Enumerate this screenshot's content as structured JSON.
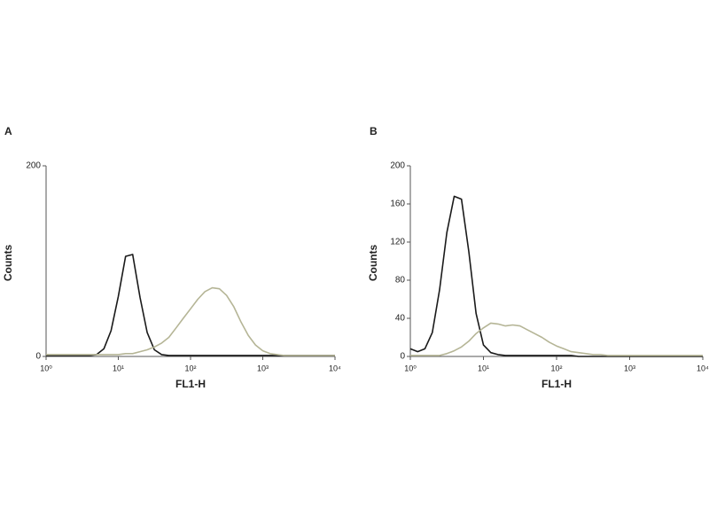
{
  "chart_data": [
    {
      "type": "line",
      "title": "A",
      "xlabel": "FL1-H",
      "ylabel": "Counts",
      "xscale": "log",
      "x": [
        1,
        1.26,
        1.58,
        2,
        2.51,
        3.16,
        3.98,
        5.01,
        6.31,
        7.94,
        10,
        12.6,
        15.8,
        20,
        25.1,
        31.6,
        39.8,
        50.1,
        63.1,
        79.4,
        100,
        126,
        158,
        200,
        251,
        316,
        398,
        501,
        631,
        794,
        1000,
        1259,
        1585,
        1995,
        2512,
        3162,
        3981,
        5012,
        6310,
        7943,
        10000
      ],
      "series": [
        {
          "color": "#1a1a1a",
          "values": [
            1,
            1,
            1,
            1,
            1,
            1,
            1,
            2,
            8,
            27,
            63,
            105,
            107,
            62,
            25,
            7,
            2,
            1,
            1,
            1,
            1,
            1,
            1,
            1,
            1,
            1,
            1,
            1,
            1,
            1,
            1,
            1,
            1,
            1,
            1,
            1,
            1,
            1,
            1,
            1,
            1
          ]
        },
        {
          "color": "#b5b596",
          "values": [
            2,
            2,
            2,
            2,
            2,
            2,
            2,
            2,
            2,
            2,
            2,
            3,
            3,
            5,
            7,
            10,
            14,
            20,
            30,
            40,
            50,
            60,
            68,
            72,
            71,
            64,
            52,
            36,
            22,
            12,
            6,
            3,
            2,
            1,
            1,
            1,
            1,
            1,
            1,
            1,
            1
          ]
        }
      ],
      "xlim": [
        1,
        10000
      ],
      "xticks": [
        {
          "value": 1,
          "label": "10⁰"
        },
        {
          "value": 10,
          "label": "10¹"
        },
        {
          "value": 100,
          "label": "10²"
        },
        {
          "value": 1000,
          "label": "10³"
        },
        {
          "value": 10000,
          "label": "10⁴"
        }
      ],
      "ylim": [
        0,
        200
      ],
      "yticks": [
        0,
        200
      ]
    },
    {
      "type": "line",
      "title": "B",
      "xlabel": "FL1-H",
      "ylabel": "Counts",
      "xscale": "log",
      "x": [
        1,
        1.26,
        1.58,
        2,
        2.51,
        3.16,
        3.98,
        5.01,
        6.31,
        7.94,
        10,
        12.6,
        15.8,
        20,
        25.1,
        31.6,
        39.8,
        50.1,
        63.1,
        79.4,
        100,
        126,
        158,
        200,
        251,
        316,
        398,
        501,
        631,
        794,
        1000,
        1259,
        1585,
        1995,
        2512,
        3162,
        3981,
        5012,
        6310,
        7943,
        10000
      ],
      "series": [
        {
          "color": "#1a1a1a",
          "values": [
            8,
            5,
            8,
            25,
            70,
            130,
            168,
            165,
            110,
            45,
            12,
            4,
            2,
            1,
            1,
            1,
            1,
            1,
            1,
            1,
            1,
            1,
            1,
            0,
            0,
            0,
            0,
            0,
            0,
            0,
            0,
            0,
            0,
            0,
            0,
            0,
            0,
            0,
            0,
            0,
            0
          ]
        },
        {
          "color": "#b5b596",
          "values": [
            1,
            1,
            1,
            1,
            1,
            3,
            6,
            10,
            16,
            24,
            30,
            35,
            34,
            32,
            33,
            32,
            28,
            24,
            20,
            15,
            11,
            8,
            5,
            4,
            3,
            2,
            2,
            1,
            1,
            1,
            1,
            1,
            1,
            1,
            1,
            1,
            1,
            1,
            1,
            1,
            1
          ]
        }
      ],
      "xlim": [
        1,
        10000
      ],
      "xticks": [
        {
          "value": 1,
          "label": "10⁰"
        },
        {
          "value": 10,
          "label": "10¹"
        },
        {
          "value": 100,
          "label": "10²"
        },
        {
          "value": 1000,
          "label": "10³"
        },
        {
          "value": 10000,
          "label": "10⁴"
        }
      ],
      "ylim": [
        0,
        200
      ],
      "yticks": [
        0,
        40,
        80,
        120,
        160,
        200
      ]
    }
  ]
}
